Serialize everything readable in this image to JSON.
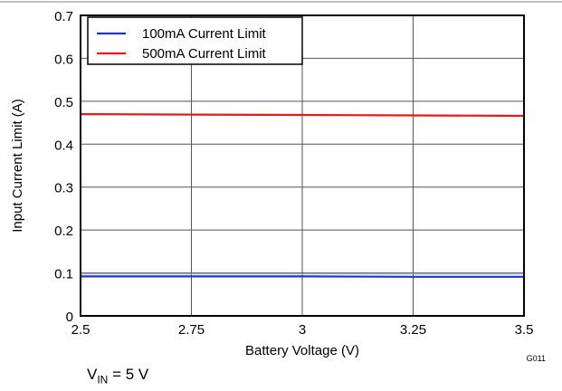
{
  "chart_data": {
    "type": "line",
    "x": [
      2.5,
      2.75,
      3,
      3.25,
      3.5
    ],
    "series": [
      {
        "name": "100mA Current Limit",
        "color": "#1f35c9",
        "values": [
          0.092,
          0.092,
          0.092,
          0.091,
          0.091
        ]
      },
      {
        "name": "500mA Current Limit",
        "color": "#e01b1b",
        "values": [
          0.47,
          0.469,
          0.468,
          0.467,
          0.466
        ]
      }
    ],
    "xlabel": "Battery Voltage (V)",
    "ylabel": "Input Current Limit (A)",
    "xlim": [
      2.5,
      3.5
    ],
    "ylim": [
      0,
      0.7
    ],
    "xticks": [
      "2.5",
      "2.75",
      "3",
      "3.25",
      "3.5"
    ],
    "yticks": [
      "0",
      "0.1",
      "0.2",
      "0.3",
      "0.4",
      "0.5",
      "0.6",
      "0.7"
    ],
    "grid": true,
    "legend_position": "top-left",
    "figure_id": "G011"
  },
  "footnote": {
    "prefix": "V",
    "subscript": "IN",
    "suffix": " = 5 V"
  }
}
